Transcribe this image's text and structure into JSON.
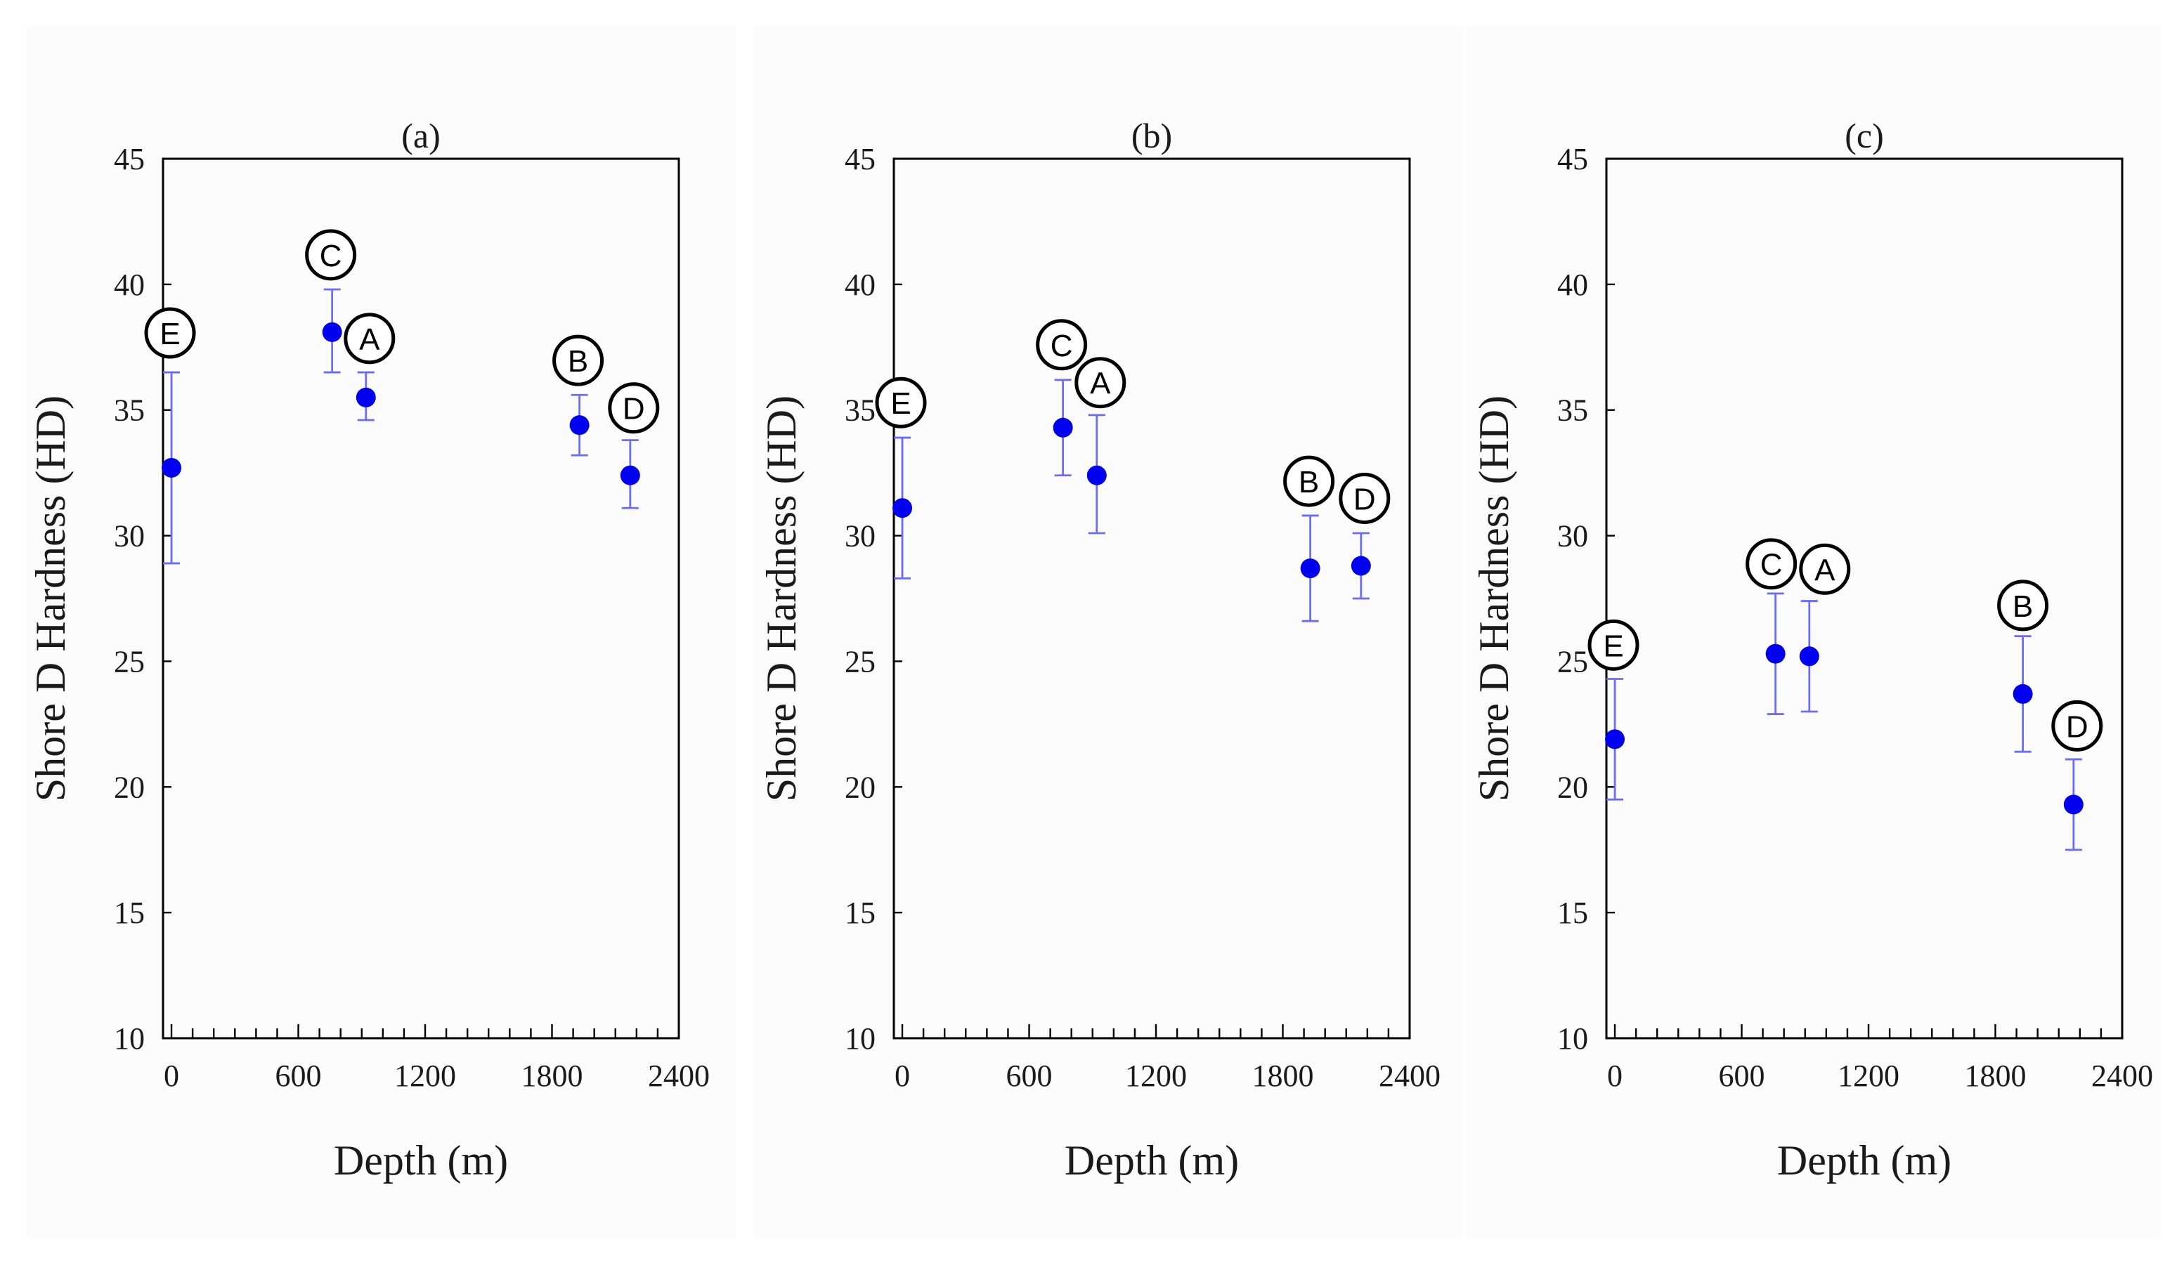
{
  "colors": {
    "point": "#0000ee",
    "errorbar": "#6b6bff",
    "axis": "#000000"
  },
  "chart_data": [
    {
      "type": "scatter",
      "title": "(a)",
      "xlabel": "Depth (m)",
      "ylabel": "Shore D Hardness (HD)",
      "xlim": [
        -40,
        2400
      ],
      "ylim": [
        10,
        45
      ],
      "xticks": [
        0,
        600,
        1200,
        1800,
        2400
      ],
      "yticks": [
        10,
        15,
        20,
        25,
        30,
        35,
        40,
        45
      ],
      "points": [
        {
          "label": "E",
          "x": 0,
          "y": 32.7,
          "err_low": 28.9,
          "err_high": 36.5
        },
        {
          "label": "C",
          "x": 760,
          "y": 38.1,
          "err_low": 36.5,
          "err_high": 39.8
        },
        {
          "label": "A",
          "x": 920,
          "y": 35.5,
          "err_low": 34.6,
          "err_high": 36.5
        },
        {
          "label": "B",
          "x": 1930,
          "y": 34.4,
          "err_low": 33.2,
          "err_high": 35.6
        },
        {
          "label": "D",
          "x": 2170,
          "y": 32.4,
          "err_low": 31.1,
          "err_high": 33.8
        }
      ]
    },
    {
      "type": "scatter",
      "title": "(b)",
      "xlabel": "Depth (m)",
      "ylabel": "Shore D Hardness (HD)",
      "xlim": [
        -40,
        2400
      ],
      "ylim": [
        10,
        45
      ],
      "xticks": [
        0,
        600,
        1200,
        1800,
        2400
      ],
      "yticks": [
        10,
        15,
        20,
        25,
        30,
        35,
        40,
        45
      ],
      "points": [
        {
          "label": "E",
          "x": 0,
          "y": 31.1,
          "err_low": 28.3,
          "err_high": 33.9
        },
        {
          "label": "C",
          "x": 760,
          "y": 34.3,
          "err_low": 32.4,
          "err_high": 36.2
        },
        {
          "label": "A",
          "x": 920,
          "y": 32.4,
          "err_low": 30.1,
          "err_high": 34.8
        },
        {
          "label": "B",
          "x": 1930,
          "y": 28.7,
          "err_low": 26.6,
          "err_high": 30.8
        },
        {
          "label": "D",
          "x": 2170,
          "y": 28.8,
          "err_low": 27.5,
          "err_high": 30.1
        }
      ]
    },
    {
      "type": "scatter",
      "title": "(c)",
      "xlabel": "Depth (m)",
      "ylabel": "Shore D Hardness (HD)",
      "xlim": [
        -40,
        2400
      ],
      "ylim": [
        10,
        45
      ],
      "xticks": [
        0,
        600,
        1200,
        1800,
        2400
      ],
      "yticks": [
        10,
        15,
        20,
        25,
        30,
        35,
        40,
        45
      ],
      "points": [
        {
          "label": "E",
          "x": 0,
          "y": 21.9,
          "err_low": 19.5,
          "err_high": 24.3
        },
        {
          "label": "C",
          "x": 760,
          "y": 25.3,
          "err_low": 22.9,
          "err_high": 27.7
        },
        {
          "label": "A",
          "x": 920,
          "y": 25.2,
          "err_low": 23.0,
          "err_high": 27.4
        },
        {
          "label": "B",
          "x": 1930,
          "y": 23.7,
          "err_low": 21.4,
          "err_high": 26.0
        },
        {
          "label": "D",
          "x": 2170,
          "y": 19.3,
          "err_low": 17.5,
          "err_high": 21.1
        }
      ]
    }
  ]
}
